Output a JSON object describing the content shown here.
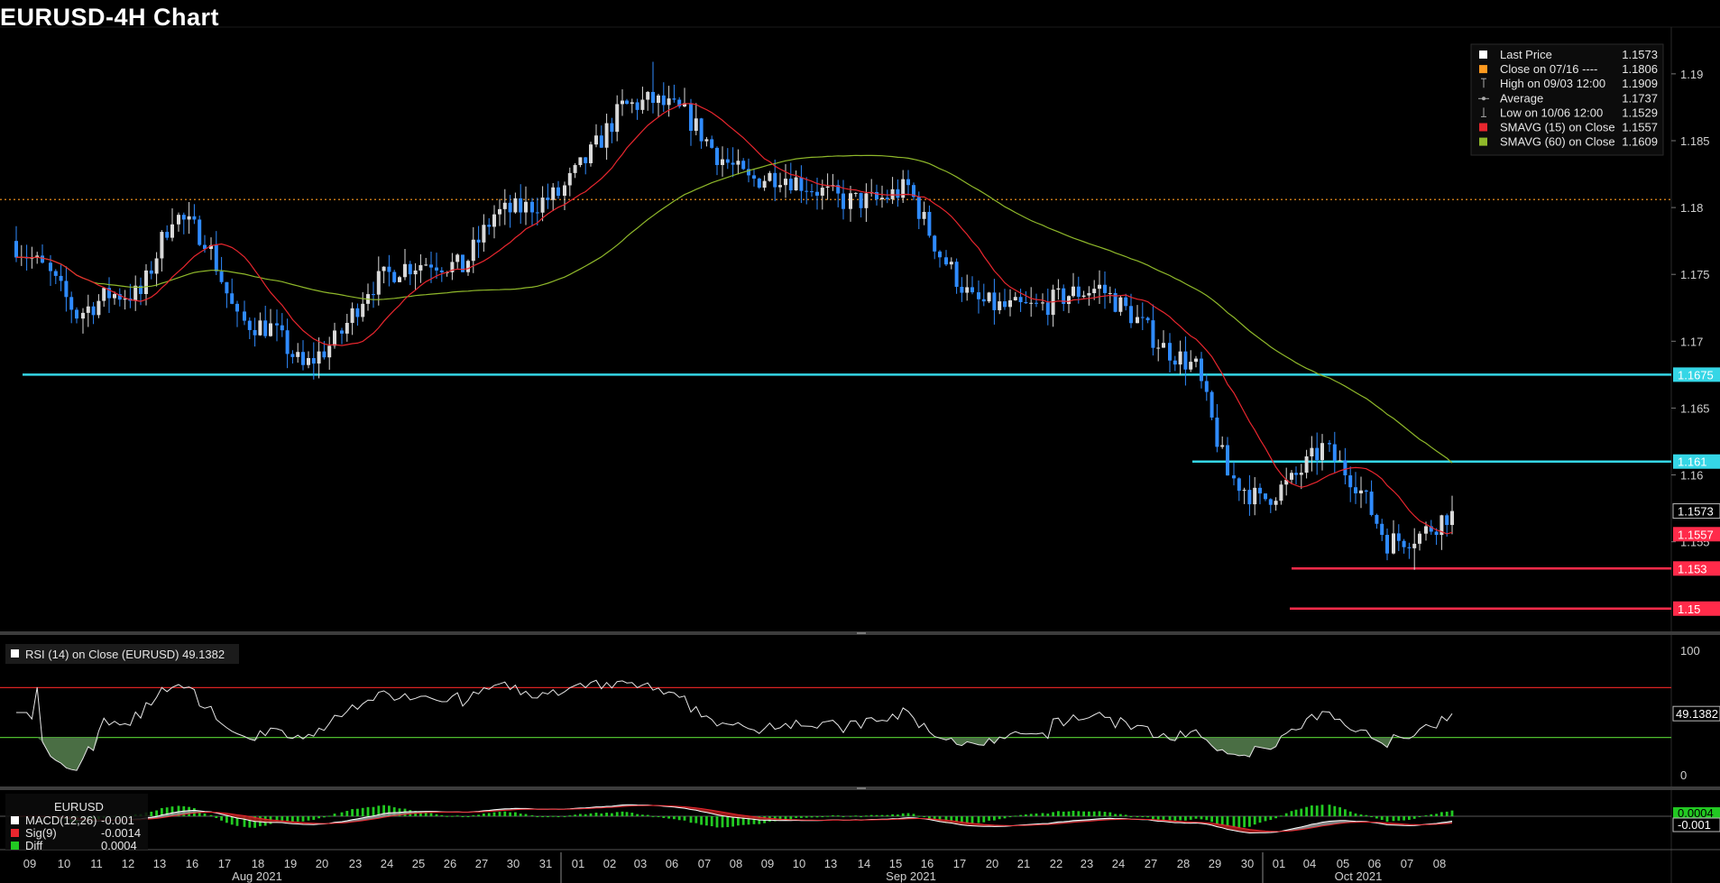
{
  "title": "EURUSD-4H Chart",
  "colors": {
    "up_candle": "#d9d9d9",
    "down_candle": "#2f8bff",
    "sma15": "#e8262e",
    "sma60": "#8fb82a",
    "close_line": "#ff9a1f",
    "support_cyan": "#35d6e6",
    "support_red": "#ff2b4a",
    "rsi_line": "#e6e6e6",
    "rsi_upper": "#d92222",
    "rsi_lower": "#4fbd2e",
    "macd_fill_red": "#a81c1c",
    "macd_fill_white": "#9a9a9a",
    "diff_bar": "#22c922"
  },
  "legend": [
    {
      "label": "Last Price",
      "value": "1.1573",
      "marker": "white-square"
    },
    {
      "label": "Close on 07/16 ----",
      "value": "1.1806",
      "marker": "orange-square"
    },
    {
      "label": "High on 09/03 12:00",
      "value": "1.1909",
      "marker": "high-tick-icon"
    },
    {
      "label": "Average",
      "value": "1.1737",
      "marker": "average-dot-icon"
    },
    {
      "label": "Low on 10/06 12:00",
      "value": "1.1529",
      "marker": "low-tick-icon"
    },
    {
      "label": "SMAVG (15)  on Close",
      "value": "1.1557",
      "marker": "red-square"
    },
    {
      "label": "SMAVG (60)  on Close",
      "value": "1.1609",
      "marker": "green-square"
    }
  ],
  "price_axis": {
    "ticks": [
      "1.19",
      "1.185",
      "1.18",
      "1.175",
      "1.17",
      "1.165",
      "1.16",
      "1.155"
    ],
    "tags": [
      {
        "label": "1.1675",
        "kind": "cyan"
      },
      {
        "label": "1.161",
        "kind": "cyan"
      },
      {
        "label": "1.1573",
        "kind": "white"
      },
      {
        "label": "1.1557",
        "kind": "red"
      },
      {
        "label": "1.153",
        "kind": "red"
      },
      {
        "label": "1.15",
        "kind": "red"
      }
    ]
  },
  "rsi": {
    "label": "RSI (14)  on Close (EURUSD) 49.1382",
    "last_value": "49.1382",
    "ticks": [
      "100",
      "0"
    ],
    "upper": 70,
    "lower": 30
  },
  "macd": {
    "series_label": "EURUSD",
    "rows": [
      {
        "label": "MACD(12,26)",
        "value": "-0.001"
      },
      {
        "label": "Sig(9)",
        "value": "-0.0014"
      },
      {
        "label": "Diff",
        "value": "0.0004"
      }
    ],
    "tags": [
      "0.0004",
      "-0.001"
    ]
  },
  "x_axis": {
    "days": [
      "09",
      "10",
      "11",
      "12",
      "13",
      "16",
      "17",
      "18",
      "19",
      "20",
      "23",
      "24",
      "25",
      "26",
      "27",
      "30",
      "31",
      "01",
      "02",
      "03",
      "06",
      "07",
      "08",
      "09",
      "10",
      "13",
      "14",
      "15",
      "16",
      "17",
      "20",
      "21",
      "22",
      "23",
      "24",
      "27",
      "28",
      "29",
      "30",
      "01",
      "04",
      "05",
      "06",
      "07",
      "08"
    ],
    "months": [
      "Aug 2021",
      "Sep 2021",
      "Oct 2021"
    ]
  },
  "chart_data": {
    "type": "candlestick",
    "symbol": "EURUSD",
    "timeframe": "4H",
    "ylim": [
      1.1485,
      1.1935
    ],
    "levels": {
      "close_0716": 1.1806,
      "support_1": 1.1675,
      "resistance_1": 1.161,
      "support_2": 1.153,
      "support_3": 1.15
    },
    "last_price": 1.1573,
    "high": 1.1909,
    "low": 1.1529,
    "average": 1.1737,
    "sma15_last": 1.1557,
    "sma60_last": 1.1609,
    "daily_close_path": [
      {
        "day": "08-09",
        "close": 1.1755
      },
      {
        "day": "08-10",
        "close": 1.172
      },
      {
        "day": "08-11",
        "close": 1.1735
      },
      {
        "day": "08-12",
        "close": 1.1735
      },
      {
        "day": "08-13",
        "close": 1.1795
      },
      {
        "day": "08-16",
        "close": 1.1778
      },
      {
        "day": "08-17",
        "close": 1.1715
      },
      {
        "day": "08-18",
        "close": 1.171
      },
      {
        "day": "08-19",
        "close": 1.168
      },
      {
        "day": "08-20",
        "close": 1.17
      },
      {
        "day": "08-23",
        "close": 1.174
      },
      {
        "day": "08-24",
        "close": 1.1755
      },
      {
        "day": "08-25",
        "close": 1.176
      },
      {
        "day": "08-26",
        "close": 1.1755
      },
      {
        "day": "08-27",
        "close": 1.1795
      },
      {
        "day": "08-30",
        "close": 1.18
      },
      {
        "day": "08-31",
        "close": 1.181
      },
      {
        "day": "09-01",
        "close": 1.184
      },
      {
        "day": "09-02",
        "close": 1.1875
      },
      {
        "day": "09-03",
        "close": 1.188
      },
      {
        "day": "09-06",
        "close": 1.187
      },
      {
        "day": "09-07",
        "close": 1.184
      },
      {
        "day": "09-08",
        "close": 1.182
      },
      {
        "day": "09-09",
        "close": 1.1825
      },
      {
        "day": "09-10",
        "close": 1.1815
      },
      {
        "day": "09-13",
        "close": 1.1805
      },
      {
        "day": "09-14",
        "close": 1.1805
      },
      {
        "day": "09-15",
        "close": 1.1815
      },
      {
        "day": "09-16",
        "close": 1.1765
      },
      {
        "day": "09-17",
        "close": 1.173
      },
      {
        "day": "09-20",
        "close": 1.1725
      },
      {
        "day": "09-21",
        "close": 1.1725
      },
      {
        "day": "09-22",
        "close": 1.1735
      },
      {
        "day": "09-23",
        "close": 1.174
      },
      {
        "day": "09-24",
        "close": 1.172
      },
      {
        "day": "09-27",
        "close": 1.1695
      },
      {
        "day": "09-28",
        "close": 1.168
      },
      {
        "day": "09-29",
        "close": 1.16
      },
      {
        "day": "09-30",
        "close": 1.158
      },
      {
        "day": "10-01",
        "close": 1.1595
      },
      {
        "day": "10-04",
        "close": 1.162
      },
      {
        "day": "10-05",
        "close": 1.1595
      },
      {
        "day": "10-06",
        "close": 1.155
      },
      {
        "day": "10-07",
        "close": 1.1555
      },
      {
        "day": "10-08",
        "close": 1.1573
      }
    ]
  }
}
